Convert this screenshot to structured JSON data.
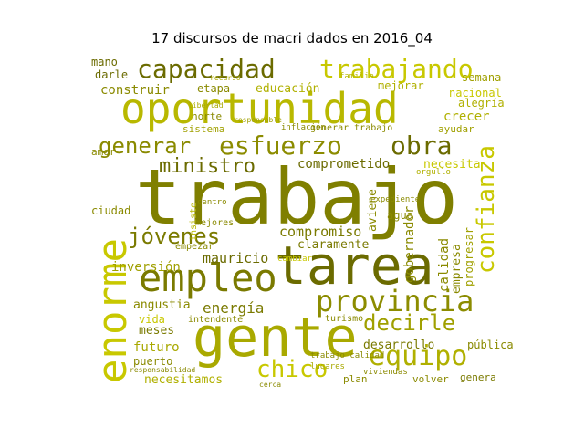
{
  "title": "17 discursos de macri dados en 2016_04",
  "colors": {
    "olive": "#808000",
    "olive_light": "#a9a900",
    "yellow": "#c8c800",
    "gold": "#b8b000"
  },
  "words": [
    "trabajo",
    "tarea",
    "gente",
    "oportunidad",
    "empleo",
    "enorme",
    "provincia",
    "trabajando",
    "capacidad",
    "esfuerzo",
    "generar",
    "obra",
    "confianza",
    "equipo",
    "decirle",
    "chico",
    "jóvenes",
    "ministro",
    "energía",
    "inversión",
    "comprometido",
    "compromiso",
    "claramente",
    "mauricio",
    "educación",
    "construir",
    "crecer",
    "necesita",
    "ciudad",
    "futuro",
    "meses",
    "vida",
    "necesitamos",
    "desarrollo",
    "calidad",
    "empresa",
    "progresar",
    "gobernador",
    "aviene",
    "agua",
    "nacional",
    "alegría",
    "semana",
    "mejorar",
    "familia",
    "etapa",
    "norte",
    "sistema",
    "generar trabajo",
    "pública",
    "volver",
    "genera",
    "plan",
    "puerto",
    "turismo",
    "mano",
    "darle",
    "angustia",
    "intendente",
    "empezar",
    "ayudar",
    "amor",
    "planta",
    "mejores",
    "insiste",
    "centro",
    "inflación",
    "expediente",
    "orgullo",
    "responsable",
    "recurso",
    "libertad",
    "lugares",
    "trabajo calidad",
    "responsabilidad",
    "cerca",
    "viviendas",
    "cambiar"
  ]
}
